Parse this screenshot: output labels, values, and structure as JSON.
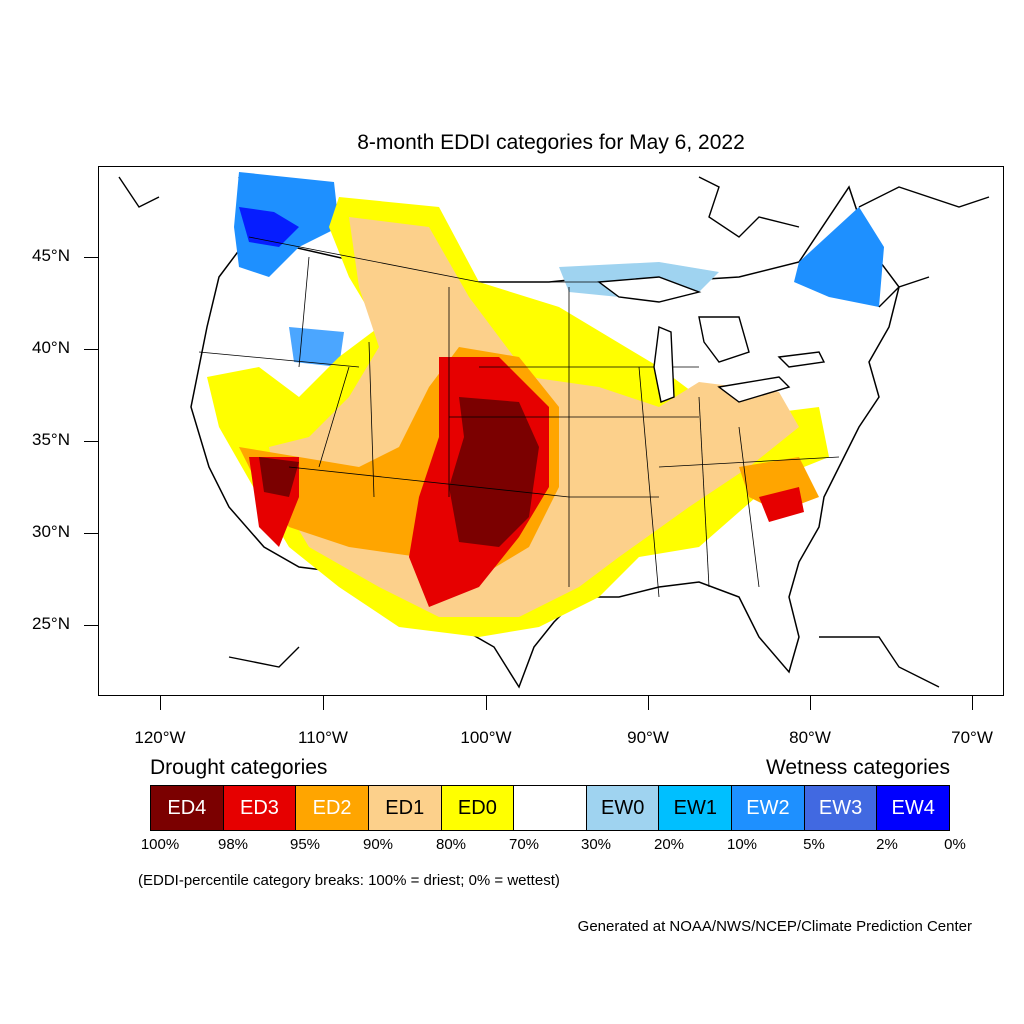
{
  "title": "8-month EDDI categories for May 6, 2022",
  "lat_labels": [
    "45°N",
    "40°N",
    "35°N",
    "30°N",
    "25°N"
  ],
  "lon_labels": [
    "120°W",
    "110°W",
    "100°W",
    "90°W",
    "80°W",
    "70°W"
  ],
  "legend": {
    "drought_heading": "Drought categories",
    "wetness_heading": "Wetness categories",
    "categories": [
      {
        "label": "ED4",
        "color": "#7b0000",
        "text_color": "#ffffff"
      },
      {
        "label": "ED3",
        "color": "#e60000",
        "text_color": "#ffffff"
      },
      {
        "label": "ED2",
        "color": "#ffa500",
        "text_color": "#ffffff"
      },
      {
        "label": "ED1",
        "color": "#fcd08b",
        "text_color": "#000000"
      },
      {
        "label": "ED0",
        "color": "#ffff00",
        "text_color": "#000000"
      },
      {
        "label": "",
        "color": "#ffffff",
        "text_color": "#000000"
      },
      {
        "label": "EW0",
        "color": "#9fd3f0",
        "text_color": "#000000"
      },
      {
        "label": "EW1",
        "color": "#00bfff",
        "text_color": "#000000"
      },
      {
        "label": "EW2",
        "color": "#1e90ff",
        "text_color": "#ffffff"
      },
      {
        "label": "EW3",
        "color": "#4169e1",
        "text_color": "#ffffff"
      },
      {
        "label": "EW4",
        "color": "#0000ff",
        "text_color": "#ffffff"
      }
    ],
    "breaks": [
      "100%",
      "98%",
      "95%",
      "90%",
      "80%",
      "70%",
      "30%",
      "20%",
      "10%",
      "5%",
      "2%",
      "0%"
    ],
    "note": "(EDDI-percentile category breaks: 100% = driest; 0% = wettest)"
  },
  "credit": "Generated at NOAA/NWS/NCEP/Climate Prediction Center"
}
